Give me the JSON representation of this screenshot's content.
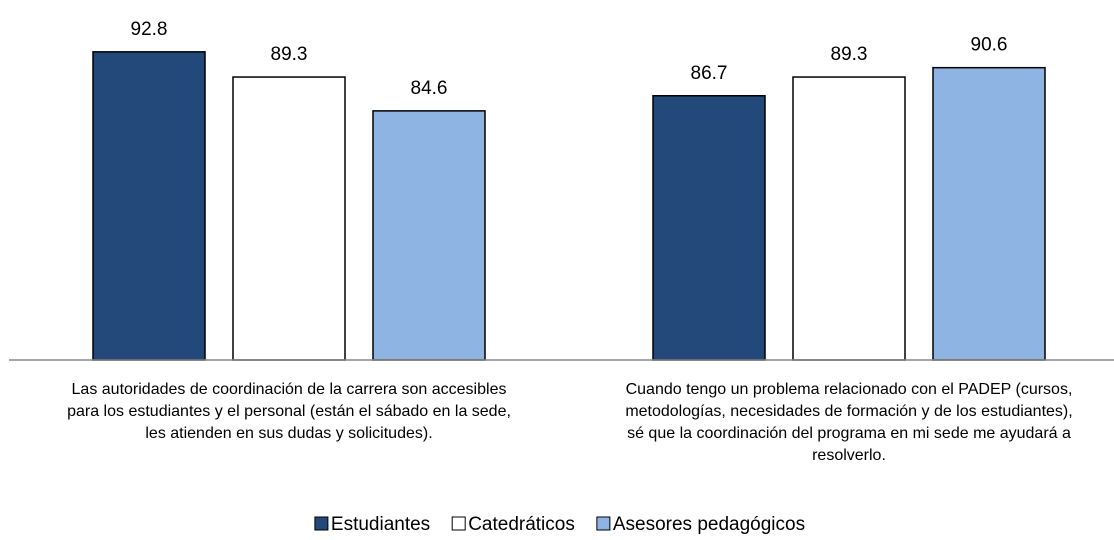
{
  "chart_data": {
    "type": "bar",
    "categories": [
      "Las autoridades de coordinación de la carrera son accesibles\npara los estudiantes y el personal (están el sábado en la sede,\nles atienden en sus dudas y solicitudes).",
      "Cuando tengo un problema relacionado con el PADEP (cursos,\nmetodologías, necesidades de formación y de los estudiantes),\nsé que la coordinación del programa en mi sede me ayudará a\nresolverlo."
    ],
    "series": [
      {
        "name": "Estudiantes",
        "color": "#23497b",
        "values": [
          92.8,
          86.7
        ]
      },
      {
        "name": "Catedráticos",
        "color": "#ffffff",
        "values": [
          89.3,
          89.3
        ]
      },
      {
        "name": "Asesores pedagógicos",
        "color": "#8db4e2",
        "values": [
          84.6,
          90.6
        ]
      }
    ],
    "ylim": [
      50,
      100
    ],
    "legend": "bottom"
  }
}
